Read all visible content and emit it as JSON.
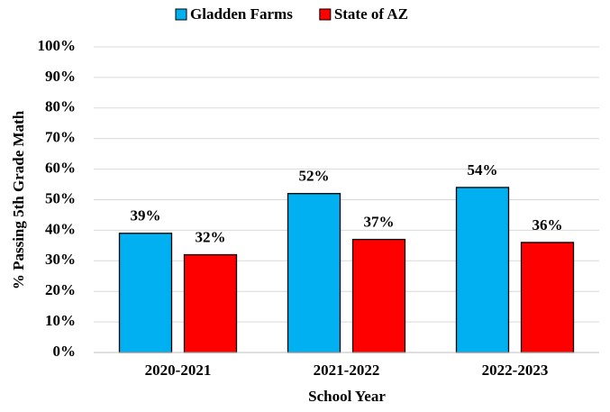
{
  "chart_data": {
    "type": "bar",
    "categories": [
      "2020-2021",
      "2021-2022",
      "2022-2023"
    ],
    "series": [
      {
        "name": "Gladden Farms",
        "color": "#00b0f0",
        "values": [
          39,
          52,
          54
        ],
        "value_labels": [
          "39%",
          "52%",
          "54%"
        ]
      },
      {
        "name": "State of AZ",
        "color": "#ff0000",
        "values": [
          32,
          37,
          36
        ],
        "value_labels": [
          "32%",
          "37%",
          "36%"
        ]
      }
    ],
    "x_label": "School Year",
    "y_label": "% Passing 5th Grade Math",
    "ylim": [
      0,
      100
    ],
    "yticks": [
      {
        "value": 0,
        "label": "0%"
      },
      {
        "value": 10,
        "label": "10%"
      },
      {
        "value": 20,
        "label": "20%"
      },
      {
        "value": 30,
        "label": "30%"
      },
      {
        "value": 40,
        "label": "40%"
      },
      {
        "value": 50,
        "label": "50%"
      },
      {
        "value": 60,
        "label": "60%"
      },
      {
        "value": 70,
        "label": "70%"
      },
      {
        "value": 80,
        "label": "80%"
      },
      {
        "value": 90,
        "label": "90%"
      },
      {
        "value": 100,
        "label": "100%"
      }
    ],
    "grid": true,
    "legend": "top"
  }
}
